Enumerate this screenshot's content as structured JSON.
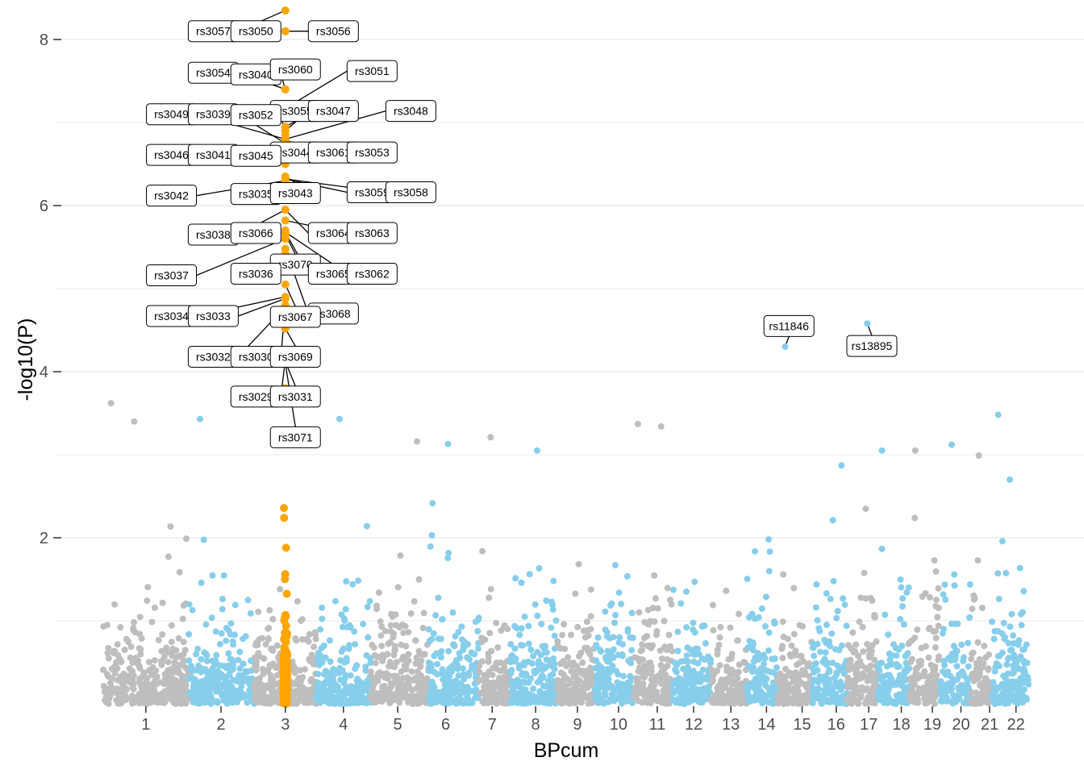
{
  "chart_data": {
    "type": "scatter",
    "title": "",
    "xlabel": "BPcum",
    "ylabel": "-log10(P)",
    "ylim": [
      0,
      8.45
    ],
    "y_ticks": [
      2,
      4,
      6,
      8
    ],
    "grid": "horizontal major and minor lines",
    "legend": "none",
    "colors": {
      "odd_chromosomes": "#bebebe",
      "even_chromosomes": "#87ceeb",
      "highlighted": "#ffa500",
      "grid": "#ebebeb",
      "text": "#4d4d4d"
    },
    "chromosomes": [
      {
        "label": "1",
        "start": 0.0,
        "end": 1.1,
        "tick": 0.55
      },
      {
        "label": "2",
        "start": 1.1,
        "end": 1.95,
        "tick": 1.52
      },
      {
        "label": "3",
        "start": 1.95,
        "end": 2.75,
        "tick": 2.35
      },
      {
        "label": "4",
        "start": 2.75,
        "end": 3.45,
        "tick": 3.1
      },
      {
        "label": "5",
        "start": 3.45,
        "end": 4.2,
        "tick": 3.8
      },
      {
        "label": "6",
        "start": 4.2,
        "end": 4.85,
        "tick": 4.42
      },
      {
        "label": "7",
        "start": 4.85,
        "end": 5.25,
        "tick": 5.02
      },
      {
        "label": "8",
        "start": 5.25,
        "end": 5.85,
        "tick": 5.58
      },
      {
        "label": "9",
        "start": 5.85,
        "end": 6.35,
        "tick": 6.12
      },
      {
        "label": "10",
        "start": 6.35,
        "end": 6.85,
        "tick": 6.65
      },
      {
        "label": "11",
        "start": 6.85,
        "end": 7.35,
        "tick": 7.15
      },
      {
        "label": "12",
        "start": 7.35,
        "end": 7.85,
        "tick": 7.62
      },
      {
        "label": "13",
        "start": 7.85,
        "end": 8.3,
        "tick": 8.1
      },
      {
        "label": "14",
        "start": 8.3,
        "end": 8.7,
        "tick": 8.56
      },
      {
        "label": "15",
        "start": 8.7,
        "end": 9.15,
        "tick": 9.02
      },
      {
        "label": "16",
        "start": 9.15,
        "end": 9.6,
        "tick": 9.46
      },
      {
        "label": "17",
        "start": 9.6,
        "end": 10.0,
        "tick": 9.88
      },
      {
        "label": "18",
        "start": 10.0,
        "end": 10.4,
        "tick": 10.3
      },
      {
        "label": "19",
        "start": 10.4,
        "end": 10.8,
        "tick": 10.7
      },
      {
        "label": "20",
        "start": 10.8,
        "end": 11.2,
        "tick": 11.07
      },
      {
        "label": "21",
        "start": 11.2,
        "end": 11.45,
        "tick": 11.44
      },
      {
        "label": "22",
        "start": 11.45,
        "end": 11.95,
        "tick": 11.78
      }
    ],
    "highlighted_snps": [
      {
        "id": "rs3057",
        "x": 2.35,
        "y": 8.35
      },
      {
        "id": "rs3050",
        "x": 2.35,
        "y": 8.1
      },
      {
        "id": "rs3056",
        "x": 2.35,
        "y": 8.1
      },
      {
        "id": "rs3054",
        "x": 2.35,
        "y": 7.4
      },
      {
        "id": "rs3040",
        "x": 2.35,
        "y": 7.4
      },
      {
        "id": "rs3060",
        "x": 2.35,
        "y": 7.58
      },
      {
        "id": "rs3051",
        "x": 2.35,
        "y": 7.17
      },
      {
        "id": "rs3055",
        "x": 2.35,
        "y": 6.95
      },
      {
        "id": "rs3047",
        "x": 2.35,
        "y": 6.9
      },
      {
        "id": "rs3048",
        "x": 2.35,
        "y": 6.8
      },
      {
        "id": "rs3049",
        "x": 2.35,
        "y": 6.8
      },
      {
        "id": "rs3039",
        "x": 2.35,
        "y": 6.75
      },
      {
        "id": "rs3052",
        "x": 2.35,
        "y": 6.85
      },
      {
        "id": "rs3044",
        "x": 2.35,
        "y": 6.6
      },
      {
        "id": "rs3061",
        "x": 2.35,
        "y": 6.78
      },
      {
        "id": "rs3053",
        "x": 2.35,
        "y": 6.78
      },
      {
        "id": "rs3046",
        "x": 2.35,
        "y": 6.52
      },
      {
        "id": "rs3041",
        "x": 2.35,
        "y": 6.52
      },
      {
        "id": "rs3045",
        "x": 2.35,
        "y": 6.5
      },
      {
        "id": "rs3042",
        "x": 2.35,
        "y": 6.3
      },
      {
        "id": "rs3035",
        "x": 2.35,
        "y": 6.28
      },
      {
        "id": "rs3043",
        "x": 2.35,
        "y": 6.35
      },
      {
        "id": "rs3059",
        "x": 2.35,
        "y": 6.32
      },
      {
        "id": "rs3058",
        "x": 2.35,
        "y": 6.32
      },
      {
        "id": "rs3038",
        "x": 2.35,
        "y": 5.95
      },
      {
        "id": "rs3066",
        "x": 2.35,
        "y": 5.7
      },
      {
        "id": "rs3064",
        "x": 2.35,
        "y": 5.95
      },
      {
        "id": "rs3063",
        "x": 2.35,
        "y": 5.82
      },
      {
        "id": "rs3037",
        "x": 2.35,
        "y": 5.6
      },
      {
        "id": "rs3070",
        "x": 2.35,
        "y": 5.65
      },
      {
        "id": "rs3065",
        "x": 2.35,
        "y": 5.68
      },
      {
        "id": "rs3062",
        "x": 2.35,
        "y": 5.68
      },
      {
        "id": "rs3036",
        "x": 2.35,
        "y": 5.42
      },
      {
        "id": "rs3068",
        "x": 2.35,
        "y": 5.48
      },
      {
        "id": "rs3034",
        "x": 2.35,
        "y": 4.9
      },
      {
        "id": "rs3033",
        "x": 2.35,
        "y": 4.88
      },
      {
        "id": "rs3067",
        "x": 2.35,
        "y": 5.05
      },
      {
        "id": "rs3032",
        "x": 2.35,
        "y": 4.78
      },
      {
        "id": "rs3030",
        "x": 2.35,
        "y": 4.8
      },
      {
        "id": "rs3069",
        "x": 2.35,
        "y": 4.52
      },
      {
        "id": "rs3029",
        "x": 2.35,
        "y": 4.15
      },
      {
        "id": "rs3031",
        "x": 2.35,
        "y": 4.12
      },
      {
        "id": "rs3071",
        "x": 2.35,
        "y": 4.1
      },
      {
        "id": "rs11846",
        "x": 8.8,
        "y": 4.3
      },
      {
        "id": "rs13895",
        "x": 9.86,
        "y": 4.58
      }
    ],
    "labels": [
      {
        "id": "rs3057",
        "lx": 1.42,
        "ly": 8.1
      },
      {
        "id": "rs3050",
        "lx": 1.97,
        "ly": 8.1
      },
      {
        "id": "rs3056",
        "lx": 2.97,
        "ly": 8.1
      },
      {
        "id": "rs3054",
        "lx": 1.42,
        "ly": 7.6
      },
      {
        "id": "rs3040",
        "lx": 1.97,
        "ly": 7.58
      },
      {
        "id": "rs3060",
        "lx": 2.48,
        "ly": 7.64
      },
      {
        "id": "rs3051",
        "lx": 3.47,
        "ly": 7.62
      },
      {
        "id": "rs3055",
        "lx": 2.48,
        "ly": 7.14
      },
      {
        "id": "rs3047",
        "lx": 2.97,
        "ly": 7.14
      },
      {
        "id": "rs3048",
        "lx": 3.97,
        "ly": 7.14
      },
      {
        "id": "rs3049",
        "lx": 0.88,
        "ly": 7.1
      },
      {
        "id": "rs3039",
        "lx": 1.42,
        "ly": 7.1
      },
      {
        "id": "rs3052",
        "lx": 1.97,
        "ly": 7.09
      },
      {
        "id": "rs3044",
        "lx": 2.48,
        "ly": 6.64
      },
      {
        "id": "rs3061",
        "lx": 2.97,
        "ly": 6.64
      },
      {
        "id": "rs3053",
        "lx": 3.47,
        "ly": 6.64
      },
      {
        "id": "rs3046",
        "lx": 0.88,
        "ly": 6.61
      },
      {
        "id": "rs3041",
        "lx": 1.42,
        "ly": 6.61
      },
      {
        "id": "rs3045",
        "lx": 1.97,
        "ly": 6.6
      },
      {
        "id": "rs3042",
        "lx": 0.88,
        "ly": 6.12
      },
      {
        "id": "rs3035",
        "lx": 1.97,
        "ly": 6.14
      },
      {
        "id": "rs3043",
        "lx": 2.48,
        "ly": 6.15
      },
      {
        "id": "rs3059",
        "lx": 3.47,
        "ly": 6.16
      },
      {
        "id": "rs3058",
        "lx": 3.97,
        "ly": 6.16
      },
      {
        "id": "rs3038",
        "lx": 1.42,
        "ly": 5.65
      },
      {
        "id": "rs3066",
        "lx": 1.97,
        "ly": 5.67
      },
      {
        "id": "rs3064",
        "lx": 2.97,
        "ly": 5.67
      },
      {
        "id": "rs3063",
        "lx": 3.47,
        "ly": 5.67
      },
      {
        "id": "rs3037",
        "lx": 0.88,
        "ly": 5.16
      },
      {
        "id": "rs3070",
        "lx": 2.48,
        "ly": 5.29
      },
      {
        "id": "rs3065",
        "lx": 2.97,
        "ly": 5.18
      },
      {
        "id": "rs3062",
        "lx": 3.47,
        "ly": 5.18
      },
      {
        "id": "rs3036",
        "lx": 1.97,
        "ly": 5.18
      },
      {
        "id": "rs3068",
        "lx": 2.97,
        "ly": 4.7
      },
      {
        "id": "rs3034",
        "lx": 0.88,
        "ly": 4.67
      },
      {
        "id": "rs3033",
        "lx": 1.42,
        "ly": 4.67
      },
      {
        "id": "rs3067",
        "lx": 2.48,
        "ly": 4.66
      },
      {
        "id": "rs3032",
        "lx": 1.42,
        "ly": 4.18
      },
      {
        "id": "rs3030",
        "lx": 1.97,
        "ly": 4.18
      },
      {
        "id": "rs3069",
        "lx": 2.48,
        "ly": 4.18
      },
      {
        "id": "rs3029",
        "lx": 1.97,
        "ly": 3.7
      },
      {
        "id": "rs3031",
        "lx": 2.48,
        "ly": 3.7
      },
      {
        "id": "rs3071",
        "lx": 2.48,
        "ly": 3.21
      },
      {
        "id": "rs11846",
        "lx": 8.85,
        "ly": 4.55
      },
      {
        "id": "rs13895",
        "lx": 9.92,
        "ly": 4.31
      }
    ],
    "background_extremes": [
      {
        "x": 0.1,
        "y": 3.62
      },
      {
        "x": 0.4,
        "y": 3.4
      },
      {
        "x": 1.25,
        "y": 3.43
      },
      {
        "x": 3.05,
        "y": 3.43
      },
      {
        "x": 4.05,
        "y": 3.16
      },
      {
        "x": 4.45,
        "y": 3.13
      },
      {
        "x": 5.0,
        "y": 3.21
      },
      {
        "x": 5.6,
        "y": 3.05
      },
      {
        "x": 6.9,
        "y": 3.37
      },
      {
        "x": 7.2,
        "y": 3.34
      },
      {
        "x": 10.05,
        "y": 3.05
      },
      {
        "x": 10.48,
        "y": 3.05
      },
      {
        "x": 10.95,
        "y": 3.12
      },
      {
        "x": 11.3,
        "y": 2.99
      },
      {
        "x": 11.55,
        "y": 3.48
      },
      {
        "x": 11.7,
        "y": 2.7
      }
    ]
  }
}
